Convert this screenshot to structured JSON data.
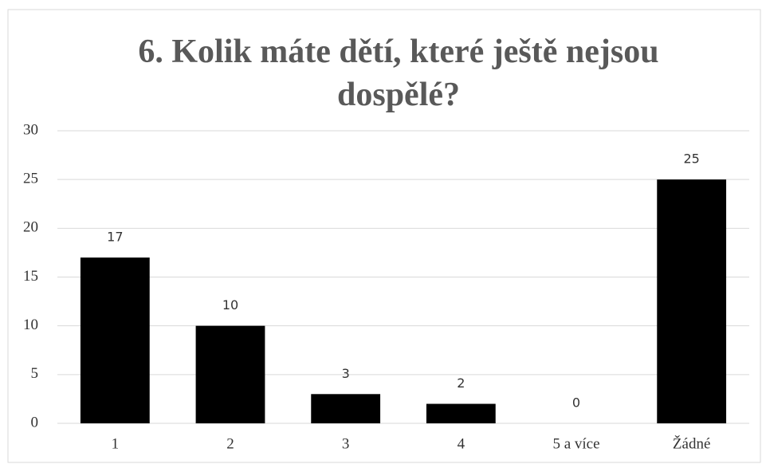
{
  "chart_data": {
    "type": "bar",
    "title": "6. Kolik máte dětí, které ještě nejsou dospělé?",
    "categories": [
      "1",
      "2",
      "3",
      "4",
      "5 a více",
      "Žádné"
    ],
    "values": [
      17,
      10,
      3,
      2,
      0,
      25
    ],
    "color": "#000000",
    "ylim": [
      0,
      30
    ],
    "yticks": [
      0,
      5,
      10,
      15,
      20,
      25,
      30
    ],
    "grid": true
  }
}
